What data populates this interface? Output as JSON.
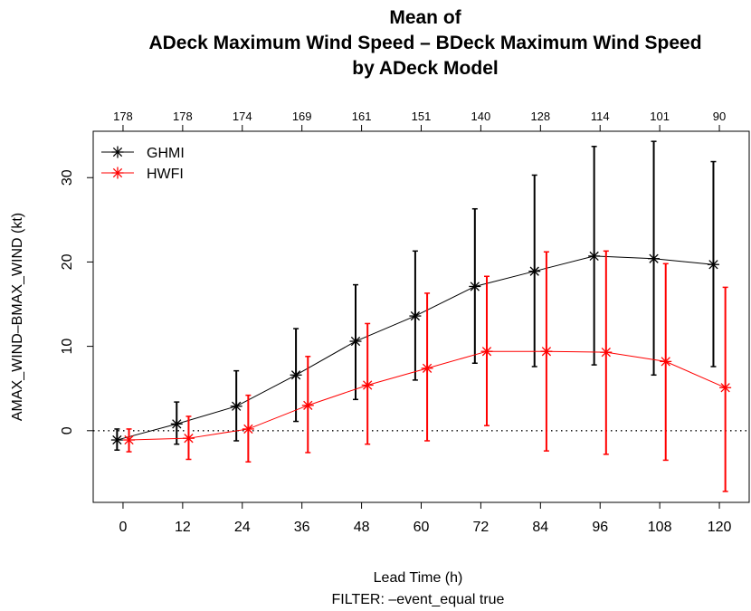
{
  "chart_data": {
    "type": "line",
    "title_lines": [
      "Mean of",
      "ADeck Maximum Wind Speed – BDeck Maximum Wind Speed",
      "by ADeck Model"
    ],
    "xlabel": "Lead Time (h)",
    "filter_text": "FILTER:  –event_equal true",
    "ylabel": "AMAX_WIND–BMAX_WIND (kt)",
    "x": [
      0,
      12,
      24,
      36,
      48,
      60,
      72,
      84,
      96,
      108,
      120
    ],
    "x_ticks": [
      "0",
      "12",
      "24",
      "36",
      "48",
      "60",
      "72",
      "84",
      "96",
      "108",
      "120"
    ],
    "y_ticks": [
      "0",
      "10",
      "20",
      "30"
    ],
    "y_tick_values": [
      0,
      10,
      20,
      30
    ],
    "xlim": [
      -6,
      126
    ],
    "ylim": [
      -8.5,
      35.5
    ],
    "reference_line": 0,
    "counts": [
      "178",
      "178",
      "174",
      "169",
      "161",
      "151",
      "140",
      "128",
      "114",
      "101",
      "90"
    ],
    "legend_position": "top-left",
    "series": [
      {
        "name": "GHMI",
        "color": "#000000",
        "offset": -1.2,
        "values": [
          -1.1,
          0.8,
          2.9,
          6.6,
          10.6,
          13.6,
          17.1,
          18.9,
          20.7,
          20.4,
          19.7
        ],
        "lower": [
          -2.3,
          -1.6,
          -1.2,
          1.1,
          3.7,
          6.0,
          8.0,
          7.6,
          7.8,
          6.6,
          7.6
        ],
        "upper": [
          0.2,
          3.4,
          7.1,
          12.1,
          17.3,
          21.3,
          26.3,
          30.3,
          33.7,
          34.3,
          31.9
        ]
      },
      {
        "name": "HWFI",
        "color": "#ff0000",
        "offset": 1.2,
        "values": [
          -1.1,
          -0.9,
          0.2,
          3.0,
          5.4,
          7.4,
          9.4,
          9.4,
          9.3,
          8.2,
          5.1
        ],
        "lower": [
          -2.5,
          -3.4,
          -3.7,
          -2.6,
          -1.6,
          -1.2,
          0.6,
          -2.4,
          -2.8,
          -3.5,
          -7.2
        ],
        "upper": [
          0.2,
          1.7,
          4.2,
          8.8,
          12.7,
          16.3,
          18.3,
          21.2,
          21.3,
          19.8,
          17.0
        ]
      }
    ]
  }
}
